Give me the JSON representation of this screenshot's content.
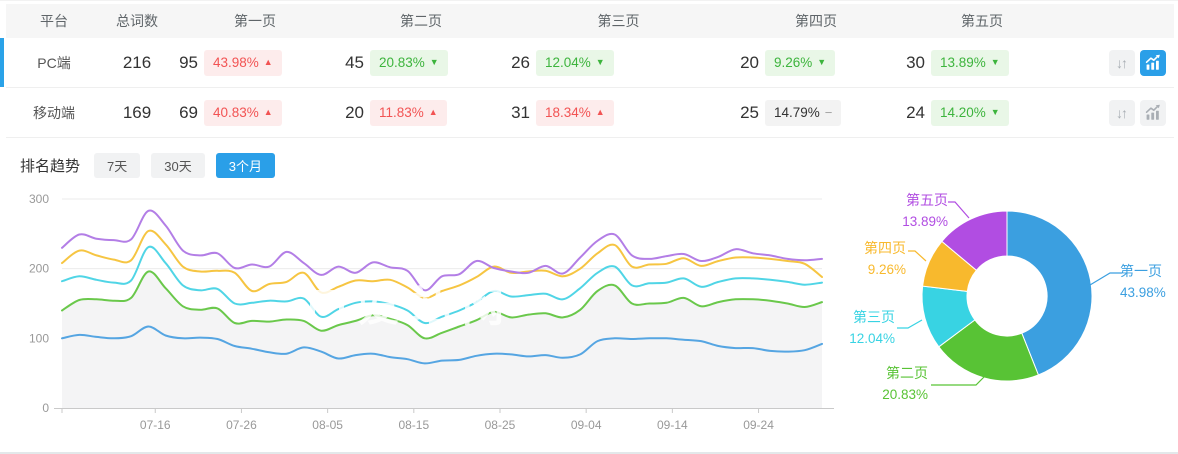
{
  "colors": {
    "accent_blue": "#2aa2e8",
    "badge_up_bg": "#fdecec",
    "badge_up_text": "#f25353",
    "badge_down_bg": "#e9f7e7",
    "badge_down_text": "#3db43d",
    "badge_flat_bg": "#f3f3f3",
    "header_bg": "#f6f6f6"
  },
  "icons": {
    "arrow_up": "▲",
    "arrow_down": "▼",
    "arrow_flat": "−",
    "sort": "↓↑"
  },
  "table": {
    "headers": [
      "平台",
      "总词数",
      "第一页",
      "第二页",
      "第三页",
      "第四页",
      "第五页"
    ],
    "rows": [
      {
        "platform": "PC端",
        "total": "216",
        "selected": true,
        "pages": [
          {
            "count": "95",
            "pct": "43.98%",
            "dir": "up"
          },
          {
            "count": "45",
            "pct": "20.83%",
            "dir": "down"
          },
          {
            "count": "26",
            "pct": "12.04%",
            "dir": "down"
          },
          {
            "count": "20",
            "pct": "9.26%",
            "dir": "down"
          },
          {
            "count": "30",
            "pct": "13.89%",
            "dir": "down"
          }
        ]
      },
      {
        "platform": "移动端",
        "total": "169",
        "selected": false,
        "pages": [
          {
            "count": "69",
            "pct": "40.83%",
            "dir": "up"
          },
          {
            "count": "20",
            "pct": "11.83%",
            "dir": "up"
          },
          {
            "count": "31",
            "pct": "18.34%",
            "dir": "up"
          },
          {
            "count": "25",
            "pct": "14.79%",
            "dir": "flat"
          },
          {
            "count": "24",
            "pct": "14.20%",
            "dir": "down"
          }
        ]
      }
    ]
  },
  "trend": {
    "title": "排名趋势",
    "tabs": [
      {
        "label": "7天",
        "active": false
      },
      {
        "label": "30天",
        "active": false
      },
      {
        "label": "3个月",
        "active": true
      }
    ]
  },
  "watermark": "爱站网",
  "chart_data": [
    {
      "type": "line",
      "title": "排名趋势（3个月）",
      "x_ticks": [
        "07-16",
        "07-26",
        "08-05",
        "08-15",
        "08-25",
        "09-04",
        "09-14",
        "09-24"
      ],
      "y_ticks": [
        0,
        100,
        200,
        300
      ],
      "ylim": [
        0,
        300
      ],
      "grid": true,
      "legend": "none",
      "area_series": "第二页",
      "series": [
        {
          "name": "第一页",
          "color": "#55a5e2",
          "values": [
            100,
            105,
            102,
            100,
            103,
            117,
            104,
            100,
            101,
            99,
            89,
            85,
            80,
            78,
            87,
            81,
            71,
            76,
            78,
            73,
            70,
            64,
            68,
            69,
            75,
            78,
            77,
            74,
            76,
            72,
            77,
            96,
            100,
            99,
            100,
            100,
            98,
            96,
            89,
            86,
            86,
            82,
            81,
            83,
            92
          ]
        },
        {
          "name": "第二页",
          "color": "#6ac84b",
          "values": [
            140,
            155,
            156,
            154,
            158,
            196,
            172,
            146,
            141,
            143,
            122,
            125,
            124,
            127,
            125,
            111,
            119,
            125,
            133,
            128,
            119,
            100,
            108,
            117,
            126,
            138,
            130,
            134,
            136,
            130,
            141,
            168,
            176,
            150,
            150,
            151,
            158,
            146,
            152,
            156,
            156,
            154,
            150,
            145,
            152
          ]
        },
        {
          "name": "第三页",
          "color": "#50d5e6",
          "values": [
            182,
            189,
            184,
            180,
            183,
            231,
            208,
            176,
            169,
            171,
            150,
            151,
            154,
            153,
            157,
            131,
            142,
            151,
            153,
            149,
            140,
            122,
            131,
            140,
            152,
            168,
            160,
            162,
            164,
            156,
            172,
            194,
            203,
            176,
            179,
            180,
            186,
            174,
            181,
            186,
            186,
            184,
            181,
            177,
            180
          ]
        },
        {
          "name": "第四页",
          "color": "#f6c542",
          "values": [
            208,
            226,
            219,
            213,
            212,
            254,
            235,
            203,
            196,
            197,
            194,
            168,
            178,
            181,
            194,
            166,
            174,
            183,
            182,
            184,
            173,
            158,
            168,
            176,
            188,
            203,
            194,
            196,
            197,
            189,
            200,
            222,
            234,
            203,
            206,
            207,
            215,
            204,
            211,
            216,
            216,
            214,
            211,
            207,
            188
          ]
        },
        {
          "name": "第五页",
          "color": "#b37ee6",
          "values": [
            230,
            249,
            243,
            241,
            242,
            283,
            262,
            226,
            219,
            222,
            201,
            206,
            203,
            224,
            208,
            191,
            203,
            194,
            209,
            202,
            197,
            169,
            189,
            192,
            211,
            201,
            196,
            194,
            204,
            193,
            216,
            240,
            249,
            219,
            214,
            218,
            221,
            211,
            217,
            228,
            222,
            219,
            214,
            212,
            214
          ]
        }
      ]
    },
    {
      "type": "pie",
      "donut": true,
      "start_angle": "top",
      "direction": "clockwise",
      "labels": [
        "第一页",
        "第二页",
        "第三页",
        "第四页",
        "第五页"
      ],
      "values": [
        43.98,
        20.83,
        12.04,
        9.26,
        13.89
      ],
      "colors": [
        "#3b9fe0",
        "#58c335",
        "#38d3e3",
        "#f8b92d",
        "#b14de2"
      ],
      "labels_display": [
        {
          "name": "第一页",
          "pct": "43.98%"
        },
        {
          "name": "第二页",
          "pct": "20.83%"
        },
        {
          "name": "第三页",
          "pct": "12.04%"
        },
        {
          "name": "第四页",
          "pct": "9.26%"
        },
        {
          "name": "第五页",
          "pct": "13.89%"
        }
      ]
    }
  ]
}
